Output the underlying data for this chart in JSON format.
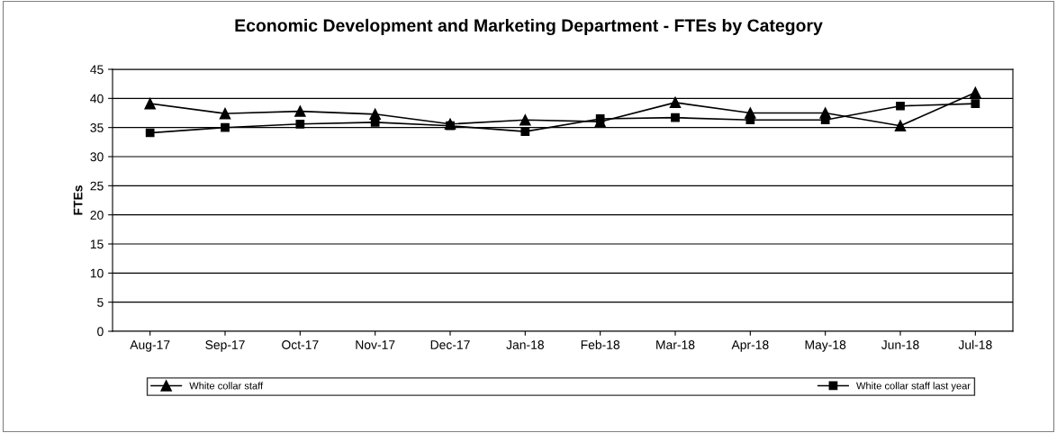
{
  "chart_data": {
    "type": "line",
    "title": "Economic Development and Marketing Department - FTEs by Category",
    "ylabel": "FTEs",
    "categories": [
      "Aug-17",
      "Sep-17",
      "Oct-17",
      "Nov-17",
      "Dec-17",
      "Jan-18",
      "Feb-18",
      "Mar-18",
      "Apr-18",
      "May-18",
      "Jun-18",
      "Jul-18"
    ],
    "series": [
      {
        "name": "White collar staff",
        "color": "#000000",
        "marker": "triangle",
        "values": [
          39.1,
          37.4,
          37.8,
          37.3,
          35.6,
          36.3,
          36.0,
          39.3,
          37.5,
          37.5,
          35.3,
          41.0
        ]
      },
      {
        "name": "White collar staff last year",
        "color": "#000000",
        "marker": "square",
        "values": [
          34.1,
          35.0,
          35.6,
          35.9,
          35.3,
          34.3,
          36.5,
          36.7,
          36.3,
          36.3,
          38.7,
          39.1
        ]
      }
    ],
    "ylim": [
      0,
      45
    ],
    "yticks": [
      0,
      5,
      10,
      15,
      20,
      25,
      30,
      35,
      40,
      45
    ],
    "grid": "y",
    "legend": "bottom",
    "line_style": "solid"
  }
}
